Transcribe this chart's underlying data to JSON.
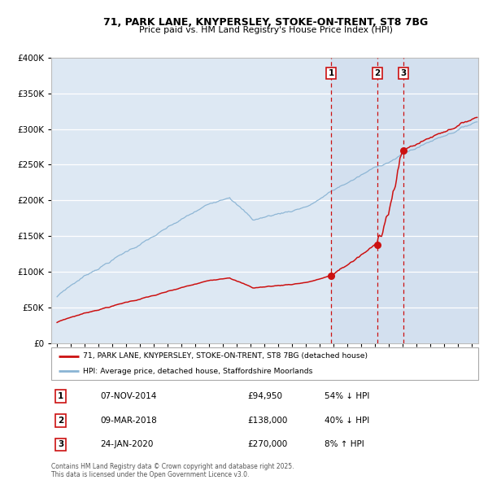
{
  "title_line1": "71, PARK LANE, KNYPERSLEY, STOKE-ON-TRENT, ST8 7BG",
  "title_line2": "Price paid vs. HM Land Registry's House Price Index (HPI)",
  "hpi_color": "#8ab4d4",
  "price_color": "#cc1111",
  "background_plot": "#dde8f3",
  "vline_color": "#cc1111",
  "sale_dates_num": [
    2014.853,
    2018.183,
    2020.069
  ],
  "sale_prices": [
    94950,
    138000,
    270000
  ],
  "sale_labels": [
    "1",
    "2",
    "3"
  ],
  "table_rows": [
    [
      "1",
      "07-NOV-2014",
      "£94,950",
      "54% ↓ HPI"
    ],
    [
      "2",
      "09-MAR-2018",
      "£138,000",
      "40% ↓ HPI"
    ],
    [
      "3",
      "24-JAN-2020",
      "£270,000",
      "8% ↑ HPI"
    ]
  ],
  "footnote": "Contains HM Land Registry data © Crown copyright and database right 2025.\nThis data is licensed under the Open Government Licence v3.0.",
  "legend_property": "71, PARK LANE, KNYPERSLEY, STOKE-ON-TRENT, ST8 7BG (detached house)",
  "legend_hpi": "HPI: Average price, detached house, Staffordshire Moorlands",
  "ylim": [
    0,
    400000
  ],
  "yticks": [
    0,
    50000,
    100000,
    150000,
    200000,
    250000,
    300000,
    350000,
    400000
  ],
  "xlim_start": 1994.58,
  "xlim_end": 2025.5
}
